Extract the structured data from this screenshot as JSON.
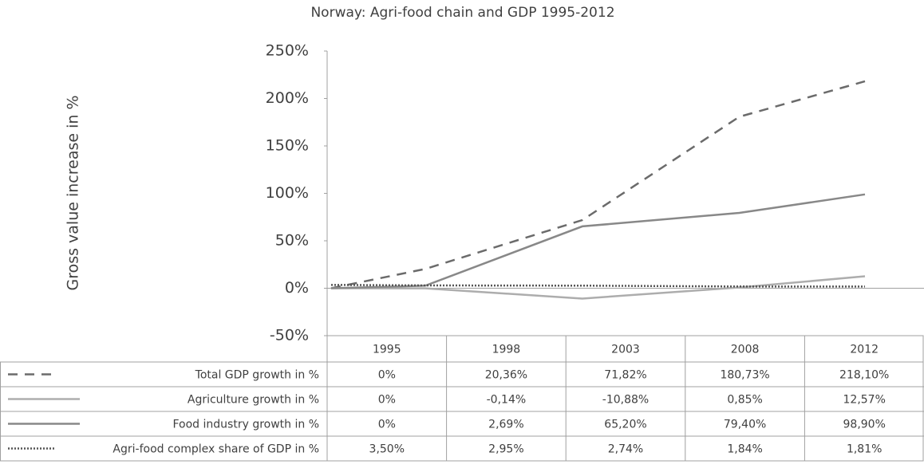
{
  "chart_data": {
    "type": "line",
    "title": "Norway: Agri-food chain and GDP 1995-2012",
    "y_label": "Gross value increase in %",
    "x": [
      1995,
      1998,
      2003,
      2008,
      2012
    ],
    "xlim": [
      1995,
      2012
    ],
    "ylim": [
      -50,
      250
    ],
    "yticks": [
      {
        "value": -50,
        "label": "-50%"
      },
      {
        "value": 0,
        "label": "0%"
      },
      {
        "value": 50,
        "label": "50%"
      },
      {
        "value": 100,
        "label": "100%"
      },
      {
        "value": 150,
        "label": "150%"
      },
      {
        "value": 200,
        "label": "200%"
      },
      {
        "value": 250,
        "label": "250%"
      }
    ],
    "series": [
      {
        "name": "Total GDP growth in %",
        "color": "#6b6b6b",
        "dash": "12 9",
        "values": [
          0,
          20.36,
          71.82,
          180.73,
          218.1
        ],
        "value_labels": [
          "0%",
          "20,36%",
          "71,82%",
          "180,73%",
          "218,10%"
        ]
      },
      {
        "name": "Agriculture growth in %",
        "color": "#adadad",
        "dash": "none",
        "values": [
          0,
          -0.14,
          -10.88,
          0.85,
          12.57
        ],
        "value_labels": [
          "0%",
          "-0,14%",
          "-10,88%",
          "0,85%",
          "12,57%"
        ]
      },
      {
        "name": "Food industry growth in %",
        "color": "#888888",
        "dash": "none",
        "values": [
          0,
          2.69,
          65.2,
          79.4,
          98.9
        ],
        "value_labels": [
          "0%",
          "2,69%",
          "65,20%",
          "79,40%",
          "98,90%"
        ]
      },
      {
        "name": "Agri-food complex share of GDP in %",
        "color": "#555555",
        "dash": "2 2",
        "values": [
          3.5,
          2.95,
          2.74,
          1.84,
          1.81
        ],
        "value_labels": [
          "3,50%",
          "2,95%",
          "2,74%",
          "1,84%",
          "1,81%"
        ]
      }
    ]
  }
}
